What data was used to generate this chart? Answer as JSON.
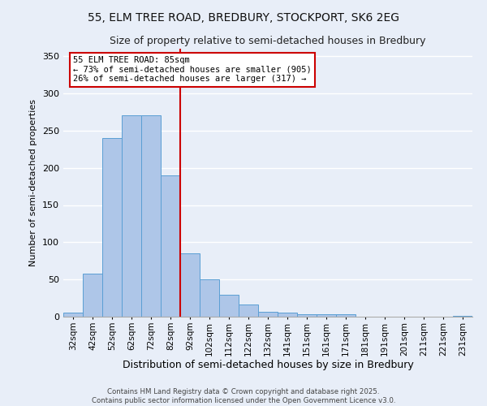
{
  "title_line1": "55, ELM TREE ROAD, BREDBURY, STOCKPORT, SK6 2EG",
  "title_line2": "Size of property relative to semi-detached houses in Bredbury",
  "xlabel": "Distribution of semi-detached houses by size in Bredbury",
  "ylabel": "Number of semi-detached properties",
  "annotation_title": "55 ELM TREE ROAD: 85sqm",
  "annotation_line2": "← 73% of semi-detached houses are smaller (905)",
  "annotation_line3": "26% of semi-detached houses are larger (317) →",
  "footer_line1": "Contains HM Land Registry data © Crown copyright and database right 2025.",
  "footer_line2": "Contains public sector information licensed under the Open Government Licence v3.0.",
  "categories": [
    "32sqm",
    "42sqm",
    "52sqm",
    "62sqm",
    "72sqm",
    "82sqm",
    "92sqm",
    "102sqm",
    "112sqm",
    "122sqm",
    "132sqm",
    "141sqm",
    "151sqm",
    "161sqm",
    "171sqm",
    "181sqm",
    "191sqm",
    "201sqm",
    "211sqm",
    "221sqm",
    "231sqm"
  ],
  "values": [
    5,
    58,
    240,
    270,
    270,
    190,
    85,
    50,
    30,
    16,
    7,
    5,
    3,
    3,
    3,
    0,
    0,
    0,
    0,
    0,
    1
  ],
  "bar_color": "#aec6e8",
  "bar_edge_color": "#5a9fd4",
  "vline_color": "#cc0000",
  "vline_x": 5.5,
  "annotation_box_color": "#cc0000",
  "background_color": "#e8eef8",
  "ylim": [
    0,
    360
  ],
  "yticks": [
    0,
    50,
    100,
    150,
    200,
    250,
    300,
    350
  ]
}
